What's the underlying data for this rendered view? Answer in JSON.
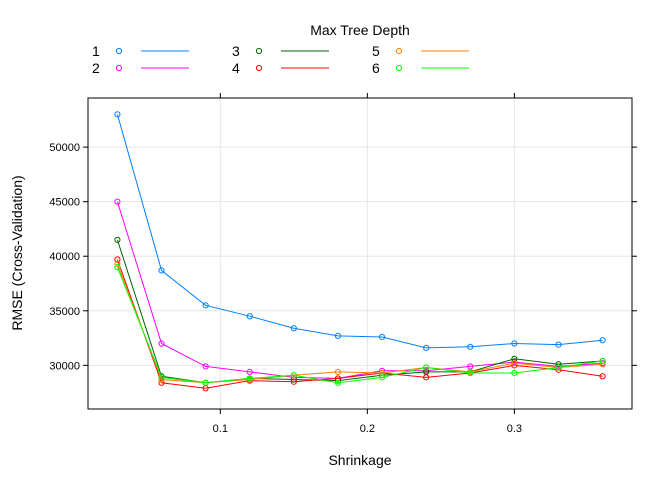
{
  "chart_data": {
    "type": "line",
    "title": "",
    "legend_title": "Max Tree Depth",
    "legend_placement": "top",
    "xlabel": "Shrinkage",
    "ylabel": "RMSE (Cross-Validation)",
    "xlim": [
      0.01,
      0.38
    ],
    "ylim": [
      26000,
      54500
    ],
    "xticks": [
      0.1,
      0.2,
      0.3
    ],
    "yticks": [
      30000,
      35000,
      40000,
      45000,
      50000
    ],
    "xtick_labels": [
      "0.1",
      "0.2",
      "0.3"
    ],
    "ytick_labels": [
      "30000",
      "35000",
      "40000",
      "45000",
      "50000"
    ],
    "grid": true,
    "x": [
      0.03,
      0.06,
      0.09,
      0.12,
      0.15,
      0.18,
      0.21,
      0.24,
      0.27,
      0.3,
      0.33,
      0.36
    ],
    "series": [
      {
        "name": "1",
        "color": "#0080ff",
        "values": [
          53000,
          38700,
          35500,
          34500,
          33400,
          32700,
          32600,
          31600,
          31700,
          32000,
          31900,
          32300
        ]
      },
      {
        "name": "2",
        "color": "#ff00ff",
        "values": [
          45000,
          32000,
          29900,
          29400,
          28900,
          28800,
          29500,
          29500,
          29900,
          30300,
          29900,
          30200
        ]
      },
      {
        "name": "3",
        "color": "#006400",
        "values": [
          41500,
          29000,
          28400,
          28800,
          28700,
          28600,
          29100,
          29400,
          29400,
          30600,
          30100,
          30400
        ]
      },
      {
        "name": "4",
        "color": "#ff0000",
        "values": [
          39700,
          28400,
          27900,
          28600,
          28500,
          28800,
          29300,
          28900,
          29300,
          30000,
          29600,
          29000
        ]
      },
      {
        "name": "5",
        "color": "#ff8000",
        "values": [
          39300,
          28700,
          28400,
          28700,
          29100,
          29400,
          29300,
          29800,
          29400,
          30200,
          29800,
          30100
        ]
      },
      {
        "name": "6",
        "color": "#00ff00",
        "values": [
          39000,
          28900,
          28400,
          28800,
          29100,
          28400,
          28900,
          29800,
          29300,
          29300,
          29800,
          30400
        ]
      }
    ]
  }
}
